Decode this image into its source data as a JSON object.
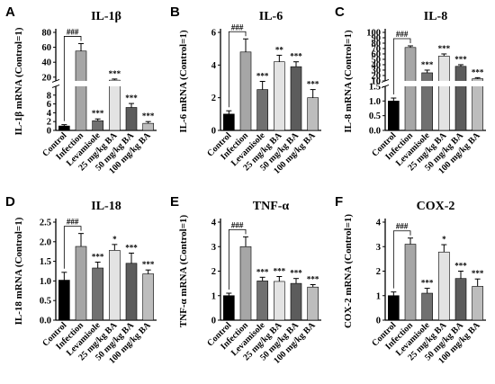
{
  "figure": {
    "categories": [
      "Control",
      "Infection",
      "Levamisole",
      "25 mg/kg BA",
      "50 mg/kg BA",
      "100 mg/kg BA"
    ],
    "bar_colors": [
      "#000000",
      "#a6a6a6",
      "#707070",
      "#e3e3e3",
      "#5c5c5c",
      "#bdbdbd"
    ]
  },
  "chart_data": [
    {
      "type": "bar",
      "letter": "A",
      "title": "IL-1β",
      "ylabel": "IL-1β mRNA (Control=1)",
      "categories": [
        "Control",
        "Infection",
        "Levamisole",
        "25 mg/kg BA",
        "50 mg/kg BA",
        "100 mg/kg BA"
      ],
      "values": [
        1.0,
        55,
        2.2,
        16,
        5.2,
        1.6
      ],
      "errors": [
        0.3,
        10,
        0.4,
        1.5,
        0.9,
        0.4
      ],
      "sig": [
        "",
        "###",
        "***",
        "***",
        "***",
        "***"
      ],
      "axis_break": {
        "from": 10,
        "to": 15
      },
      "ylim": [
        0,
        80
      ],
      "ticks": [
        0,
        2,
        4,
        6,
        8,
        20,
        40,
        60,
        80
      ]
    },
    {
      "type": "bar",
      "letter": "B",
      "title": "IL-6",
      "ylabel": "IL-6 mRNA (Control=1)",
      "categories": [
        "Control",
        "Infection",
        "Levamisole",
        "25 mg/kg BA",
        "50 mg/kg BA",
        "100 mg/kg BA"
      ],
      "values": [
        1.0,
        4.8,
        2.5,
        4.2,
        3.9,
        2.0
      ],
      "errors": [
        0.2,
        0.8,
        0.5,
        0.4,
        0.3,
        0.5
      ],
      "sig": [
        "",
        "###",
        "***",
        "**",
        "***",
        "***"
      ],
      "ylim": [
        0,
        6
      ],
      "ticks": [
        0,
        2,
        4,
        6
      ]
    },
    {
      "type": "bar",
      "letter": "C",
      "title": "IL-8",
      "ylabel": "IL-8 mRNA (Control=1)",
      "categories": [
        "Control",
        "Infection",
        "Levamisole",
        "25 mg/kg BA",
        "50 mg/kg BA",
        "100 mg/kg BA"
      ],
      "values": [
        1.0,
        72,
        25,
        56,
        37,
        14
      ],
      "errors": [
        0.1,
        3,
        5,
        4,
        3,
        2
      ],
      "sig": [
        "",
        "###",
        "***",
        "***",
        "***",
        "***"
      ],
      "axis_break": {
        "from": 1.5,
        "to": 10
      },
      "ylim": [
        0,
        100
      ],
      "ticks": [
        0.0,
        0.5,
        1.0,
        1.5,
        10,
        20,
        30,
        40,
        50,
        60,
        70,
        80,
        90,
        100
      ]
    },
    {
      "type": "bar",
      "letter": "D",
      "title": "IL-18",
      "ylabel": "IL-18 mRNA (Control=1)",
      "categories": [
        "Control",
        "Infection",
        "Levamisole",
        "25 mg/kg BA",
        "50 mg/kg BA",
        "100 mg/kg BA"
      ],
      "values": [
        1.02,
        1.88,
        1.33,
        1.78,
        1.45,
        1.18
      ],
      "errors": [
        0.2,
        0.33,
        0.15,
        0.15,
        0.26,
        0.1
      ],
      "sig": [
        "",
        "###",
        "***",
        "*",
        "***",
        "***"
      ],
      "ylim": [
        0,
        2.5
      ],
      "ticks": [
        0.0,
        0.5,
        1.0,
        1.5,
        2.0,
        2.5
      ]
    },
    {
      "type": "bar",
      "letter": "E",
      "title": "TNF-α",
      "ylabel": "TNF-α mRNA (Control=1)",
      "categories": [
        "Control",
        "Infection",
        "Levamisole",
        "25 mg/kg BA",
        "50 mg/kg BA",
        "100 mg/kg BA"
      ],
      "values": [
        1.0,
        3.0,
        1.6,
        1.58,
        1.5,
        1.35
      ],
      "errors": [
        0.1,
        0.4,
        0.15,
        0.2,
        0.2,
        0.1
      ],
      "sig": [
        "",
        "###",
        "***",
        "***",
        "***",
        "***"
      ],
      "ylim": [
        0,
        4
      ],
      "ticks": [
        0,
        1,
        2,
        3,
        4
      ]
    },
    {
      "type": "bar",
      "letter": "F",
      "title": "COX-2",
      "ylabel": "COX-2 mRNA (Control=1)",
      "categories": [
        "Control",
        "Infection",
        "Levamisole",
        "25 mg/kg BA",
        "50 mg/kg BA",
        "100 mg/kg BA"
      ],
      "values": [
        1.0,
        3.1,
        1.1,
        2.78,
        1.7,
        1.38
      ],
      "errors": [
        0.15,
        0.25,
        0.2,
        0.3,
        0.3,
        0.3
      ],
      "sig": [
        "",
        "###",
        "***",
        "*",
        "***",
        "***"
      ],
      "ylim": [
        0,
        4
      ],
      "ticks": [
        0,
        1,
        2,
        3,
        4
      ]
    }
  ]
}
